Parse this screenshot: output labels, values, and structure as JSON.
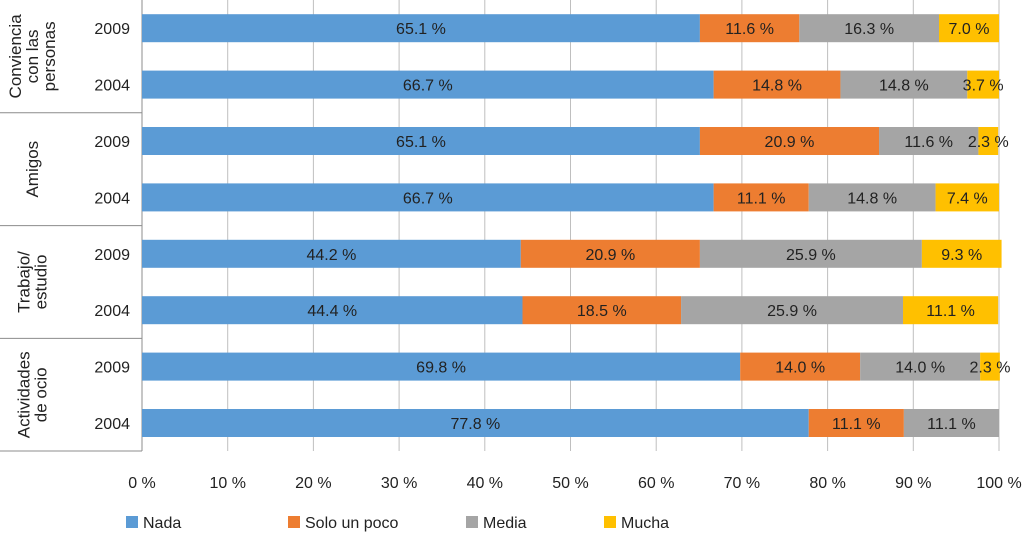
{
  "chart_data": {
    "type": "bar",
    "orientation": "horizontal",
    "stacked": true,
    "xlim": [
      0,
      100
    ],
    "x_ticks": [
      "0 %",
      "10 %",
      "20 %",
      "30 %",
      "40 %",
      "50 %",
      "60 %",
      "70 %",
      "80 %",
      "90 %",
      "100 %"
    ],
    "grid": true,
    "legend_position": "bottom",
    "series": [
      {
        "key": "nada",
        "name": "Nada",
        "color": "#5B9BD5"
      },
      {
        "key": "solo_un_poco",
        "name": "Solo un poco",
        "color": "#ED7D31"
      },
      {
        "key": "media",
        "name": "Media",
        "color": "#A5A5A5"
      },
      {
        "key": "mucha",
        "name": "Mucha",
        "color": "#FFC000"
      }
    ],
    "groups": [
      {
        "label_lines": [
          "Conviencia",
          "con las",
          "personas"
        ],
        "bars": [
          {
            "year": "2009",
            "values": [
              65.1,
              11.6,
              16.3,
              7.0
            ],
            "labels": [
              "65.1 %",
              "11.6 %",
              "16.3 %",
              "7.0 %"
            ]
          },
          {
            "year": "2004",
            "values": [
              66.7,
              14.8,
              14.8,
              3.7
            ],
            "labels": [
              "66.7 %",
              "14.8 %",
              "14.8 %",
              "3.7 %"
            ]
          }
        ]
      },
      {
        "label_lines": [
          "Amigos"
        ],
        "bars": [
          {
            "year": "2009",
            "values": [
              65.1,
              20.9,
              11.6,
              2.3
            ],
            "labels": [
              "65.1 %",
              "20.9 %",
              "11.6 %",
              "2.3 %"
            ]
          },
          {
            "year": "2004",
            "values": [
              66.7,
              11.1,
              14.8,
              7.4
            ],
            "labels": [
              "66.7 %",
              "11.1 %",
              "14.8 %",
              "7.4 %"
            ]
          }
        ]
      },
      {
        "label_lines": [
          "Trabajo/",
          "estudio"
        ],
        "bars": [
          {
            "year": "2009",
            "values": [
              44.2,
              20.9,
              25.9,
              9.3
            ],
            "labels": [
              "44.2 %",
              "20.9 %",
              "25.9 %",
              "9.3 %"
            ]
          },
          {
            "year": "2004",
            "values": [
              44.4,
              18.5,
              25.9,
              11.1
            ],
            "labels": [
              "44.4 %",
              "18.5 %",
              "25.9 %",
              "11.1 %"
            ]
          }
        ]
      },
      {
        "label_lines": [
          "Actividades",
          "de  ocio"
        ],
        "bars": [
          {
            "year": "2009",
            "values": [
              69.8,
              14.0,
              14.0,
              2.3
            ],
            "labels": [
              "69.8 %",
              "14.0 %",
              "14.0 %",
              "2.3 %"
            ]
          },
          {
            "year": "2004",
            "values": [
              77.8,
              11.1,
              11.1,
              0
            ],
            "labels": [
              "77.8 %",
              "11.1 %",
              "11.1 %",
              ""
            ]
          }
        ]
      }
    ]
  }
}
